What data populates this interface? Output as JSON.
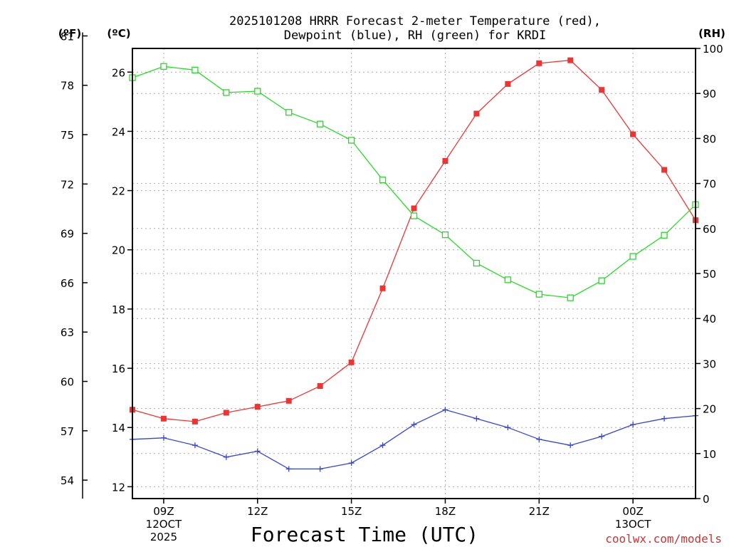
{
  "chart_data": {
    "type": "line",
    "title": {
      "line1": "2025101208 HRRR Forecast 2-meter Temperature (red),",
      "line2": "Dewpoint (blue), RH (green) for KRDI"
    },
    "xlabel": "Forecast Time (UTC)",
    "credit": "coolwx.com/models",
    "credit_color": "#cc3333",
    "units": {
      "fahrenheit": "(ºF)",
      "celsius": "(ºC)",
      "rh": "(RH)"
    },
    "x_hours": [
      8,
      9,
      10,
      11,
      12,
      13,
      14,
      15,
      16,
      17,
      18,
      19,
      20,
      21,
      22,
      23,
      24,
      25,
      26
    ],
    "x_range": [
      8,
      26
    ],
    "x_ticks": [
      {
        "hour": 9,
        "label": "09Z",
        "date": "12OCT",
        "year": "2025"
      },
      {
        "hour": 12,
        "label": "12Z"
      },
      {
        "hour": 15,
        "label": "15Z"
      },
      {
        "hour": 18,
        "label": "18Z"
      },
      {
        "hour": 21,
        "label": "21Z"
      },
      {
        "hour": 24,
        "label": "00Z",
        "date": "13OCT"
      }
    ],
    "celsius_axis": {
      "range": [
        11.6,
        26.8
      ],
      "ticks": [
        "12",
        "14",
        "16",
        "18",
        "20",
        "22",
        "24",
        "26"
      ]
    },
    "fahrenheit_axis": {
      "ticks": [
        "54",
        "57",
        "60",
        "63",
        "66",
        "69",
        "72",
        "75",
        "78",
        "81"
      ]
    },
    "rh_axis": {
      "range": [
        0,
        100
      ],
      "ticks": [
        "0",
        "10",
        "20",
        "30",
        "40",
        "50",
        "60",
        "70",
        "80",
        "90",
        "100"
      ]
    },
    "series": [
      {
        "name": "Temperature",
        "axis": "celsius",
        "color": "#ee3333",
        "marker": "filled-square",
        "values": [
          14.6,
          14.3,
          14.2,
          14.5,
          14.7,
          14.9,
          15.4,
          16.2,
          18.7,
          21.4,
          23.0,
          24.6,
          25.6,
          26.3,
          26.4,
          25.4,
          23.9,
          22.7,
          21.0
        ]
      },
      {
        "name": "Dewpoint",
        "axis": "celsius",
        "color": "#3344dd",
        "marker": "plus",
        "values": [
          13.6,
          13.65,
          13.4,
          13.0,
          13.2,
          12.6,
          12.6,
          12.8,
          13.4,
          14.1,
          14.6,
          14.3,
          14.0,
          13.6,
          13.4,
          13.7,
          14.1,
          14.3,
          14.4
        ]
      },
      {
        "name": "RH",
        "axis": "rh",
        "color": "#22dd22",
        "marker": "open-square",
        "values": [
          93.5,
          96,
          95.2,
          90.2,
          90.5,
          85.8,
          83.2,
          79.6,
          70.8,
          62.8,
          58.6,
          52.3,
          48.6,
          45.4,
          44.6,
          48.4,
          53.8,
          58.5,
          65.3
        ]
      }
    ]
  }
}
